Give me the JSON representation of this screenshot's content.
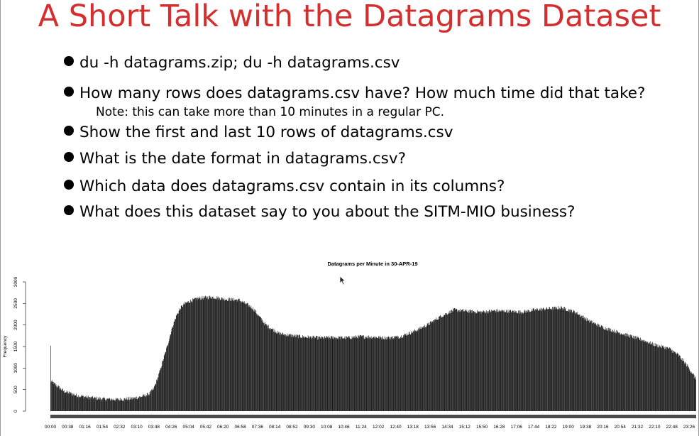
{
  "slide": {
    "title": "A Short Talk with the Datagrams Dataset",
    "bullets": [
      "du -h datagrams.zip; du -h datagrams.csv",
      "How many rows does datagrams.csv have? How much time did that take?",
      "Show the first and last 10 rows of datagrams.csv",
      "What is the date format in datagrams.csv?",
      "Which data does datagrams.csv contain in its columns?",
      "What does this dataset say to you about the SITM-MIO business?"
    ],
    "note": "Note: this can take more than 10 minutes in a regular PC.",
    "title_color": "#d42e2e"
  },
  "chart_data": {
    "type": "bar",
    "title": "Datagrams per Minute in 30-APR-19",
    "xlabel": "",
    "ylabel": "Frequency",
    "ylim": [
      0,
      3000
    ],
    "yticks": [
      "0",
      "500",
      "1000",
      "1500",
      "2000",
      "2500",
      "3000"
    ],
    "x_tick_labels": [
      "00:00",
      "00:38",
      "01:16",
      "01:54",
      "02:32",
      "03:10",
      "03:48",
      "04:26",
      "05:04",
      "05:42",
      "06:20",
      "06:58",
      "07:36",
      "08:14",
      "08:52",
      "09:30",
      "10:08",
      "10:46",
      "11:24",
      "12:02",
      "12:40",
      "13:18",
      "13:56",
      "14:34",
      "15:12",
      "15:50",
      "16:28",
      "17:06",
      "17:44",
      "18:22",
      "19:00",
      "19:38",
      "20:16",
      "20:54",
      "21:32",
      "22:10",
      "22:48",
      "23:26"
    ],
    "bar_color": "#1a1a1a",
    "outlier": {
      "time": "00:00",
      "value": 1520
    },
    "profile_minutes": [
      0,
      10,
      30,
      60,
      90,
      120,
      150,
      180,
      200,
      210,
      220,
      230,
      240,
      250,
      260,
      270,
      280,
      290,
      300,
      310,
      330,
      360,
      390,
      420,
      450,
      480,
      510,
      540,
      570,
      600,
      630,
      660,
      690,
      720,
      750,
      780,
      810,
      840,
      870,
      900,
      930,
      960,
      990,
      1020,
      1050,
      1080,
      1110,
      1140,
      1170,
      1200,
      1230,
      1260,
      1290,
      1320,
      1350,
      1380,
      1400,
      1420,
      1439
    ],
    "profile_values": [
      700,
      620,
      460,
      360,
      310,
      280,
      270,
      290,
      330,
      360,
      400,
      520,
      800,
      1150,
      1500,
      1900,
      2200,
      2400,
      2500,
      2550,
      2620,
      2650,
      2600,
      2580,
      2400,
      2000,
      1800,
      1750,
      1720,
      1700,
      1710,
      1700,
      1730,
      1720,
      1700,
      1730,
      1850,
      2000,
      2200,
      2350,
      2320,
      2300,
      2330,
      2320,
      2300,
      2350,
      2380,
      2400,
      2300,
      2100,
      1950,
      1850,
      1750,
      1650,
      1530,
      1450,
      1300,
      1050,
      750
    ]
  }
}
